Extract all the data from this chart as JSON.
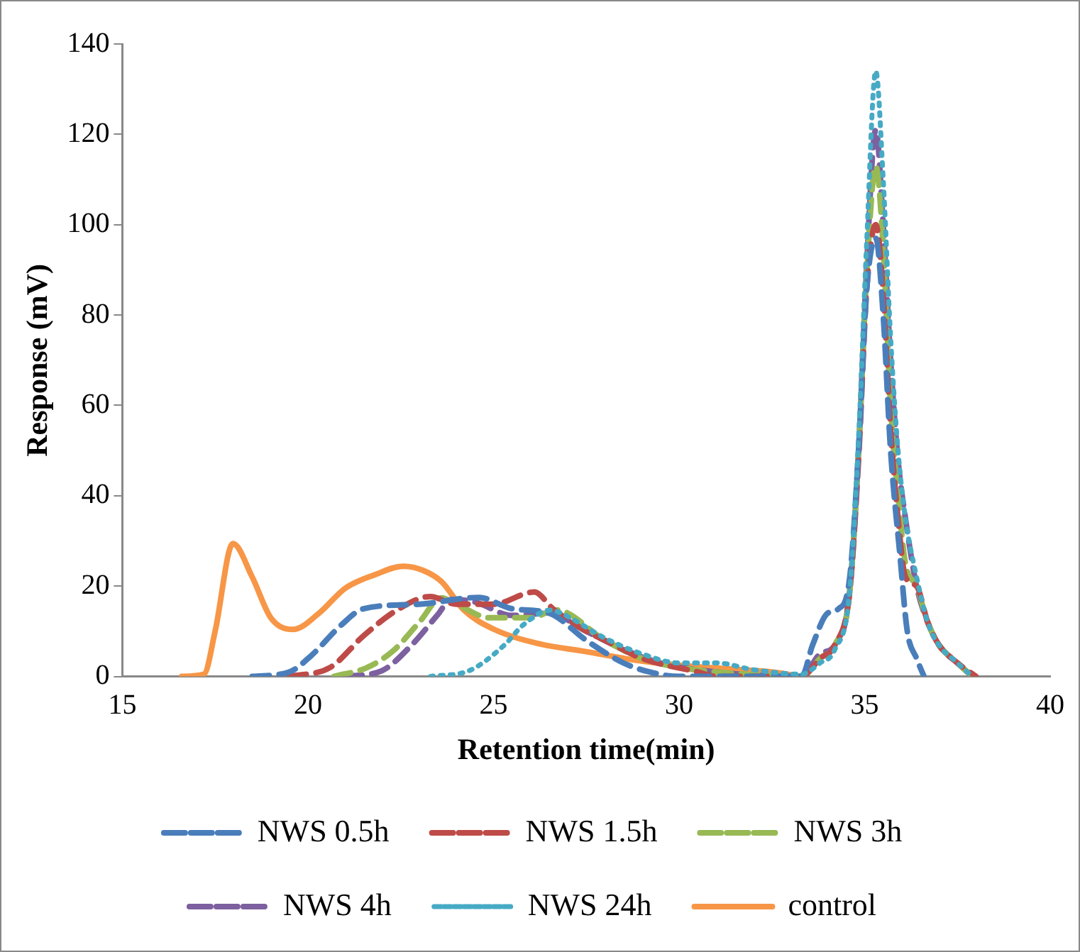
{
  "chart_data": {
    "type": "line",
    "xlabel": "Retention time(min)",
    "ylabel": "Response (mV)",
    "xlim": [
      15,
      40
    ],
    "xticks": [
      15,
      20,
      25,
      30,
      35,
      40
    ],
    "ylim": [
      0,
      140
    ],
    "yticks": [
      0,
      20,
      40,
      60,
      80,
      100,
      120,
      140
    ],
    "grid": false,
    "legend": "bottom",
    "marker": "none",
    "series": [
      {
        "name": "NWS 0.5h",
        "color": "#4a7ebb",
        "line_style": "dashed",
        "x": [
          18.5,
          19.5,
          20.1,
          20.9,
          21.5,
          23,
          24.6,
          25.5,
          26.5,
          27.5,
          28.5,
          29.2,
          30,
          31,
          32,
          33.3,
          33.6,
          34,
          34.3,
          34.6,
          34.85,
          35.05,
          35.3,
          35.5,
          35.7,
          35.95,
          36.15,
          36.4,
          36.6
        ],
        "values": [
          0,
          1,
          4.7,
          11.4,
          15,
          16,
          17.5,
          15,
          14,
          8,
          3,
          1,
          0,
          0,
          0,
          0,
          7,
          14,
          15,
          22,
          52,
          85,
          97,
          80,
          50,
          27,
          10,
          4,
          0
        ]
      },
      {
        "name": "NWS 1.5h",
        "color": "#be4b48",
        "line_style": "dashed",
        "x": [
          19.5,
          20.6,
          21.5,
          22.4,
          23.3,
          24,
          25,
          26.1,
          26.6,
          27.5,
          28,
          29,
          30.5,
          31,
          33.3,
          33.8,
          34.2,
          34.6,
          34.85,
          35.05,
          35.3,
          35.5,
          35.7,
          35.9,
          36.1,
          36.4,
          36.7,
          37,
          37.5,
          38
        ],
        "values": [
          0,
          2,
          9,
          14.7,
          17.7,
          16,
          16,
          18.7,
          15,
          10,
          8,
          4,
          1,
          0,
          0,
          4,
          7,
          19,
          50,
          85,
          100,
          85,
          55,
          35,
          22,
          20,
          12,
          7,
          3,
          0
        ]
      },
      {
        "name": "NWS 3h",
        "color": "#98b954",
        "line_style": "dashed",
        "x": [
          20.7,
          21.6,
          22.3,
          23,
          23.6,
          24,
          24.9,
          26,
          26.7,
          28,
          29,
          30,
          31,
          33.3,
          33.8,
          34.2,
          34.6,
          34.85,
          35.05,
          35.3,
          35.5,
          35.7,
          35.9,
          36.1,
          36.4,
          36.7,
          37,
          37.5,
          37.9
        ],
        "values": [
          0,
          2,
          5.7,
          12,
          17.4,
          16,
          13,
          13,
          14.7,
          8,
          4,
          2,
          1,
          0,
          4,
          7,
          19,
          52,
          88,
          113,
          95,
          60,
          40,
          25,
          20,
          12,
          7,
          3,
          0
        ]
      },
      {
        "name": "NWS 4h",
        "color": "#7d60a0",
        "line_style": "dashed",
        "x": [
          21,
          22,
          22.8,
          23.5,
          23.85,
          24.5,
          25.5,
          26.5,
          27.5,
          28.5,
          29.5,
          31,
          33.3,
          33.8,
          34.2,
          34.6,
          34.85,
          35.05,
          35.3,
          35.5,
          35.7,
          35.9,
          36.1,
          36.4,
          36.7,
          37,
          37.5,
          37.9
        ],
        "values": [
          0,
          1.3,
          7,
          13.7,
          17,
          16.5,
          13.5,
          14,
          10,
          6,
          3,
          1,
          0,
          5,
          7,
          19,
          52,
          90,
          121,
          100,
          70,
          48,
          35,
          20,
          12,
          7,
          3,
          0
        ]
      },
      {
        "name": "NWS 24h",
        "color": "#46aac5",
        "line_style": "dotted",
        "x": [
          23.3,
          24.35,
          25.3,
          25.8,
          26.55,
          26.9,
          28,
          29,
          30,
          31,
          32,
          33.3,
          33.8,
          34.2,
          34.6,
          34.85,
          35.05,
          35.3,
          35.5,
          35.7,
          35.9,
          36.1,
          36.4,
          36.7,
          37,
          37.5,
          37.9
        ],
        "values": [
          0,
          1.3,
          7,
          11.4,
          14.7,
          13.7,
          8.5,
          5,
          3,
          3,
          1.5,
          0.5,
          3,
          6,
          19,
          55,
          95,
          134,
          110,
          75,
          50,
          35,
          22,
          12,
          7,
          3,
          0
        ]
      },
      {
        "name": "control",
        "color": "#f79646",
        "line_style": "solid",
        "x": [
          16.6,
          17.2,
          17.5,
          17.98,
          18.5,
          19,
          19.6,
          20.3,
          21,
          21.8,
          22.57,
          23.1,
          23.6,
          24.2,
          25,
          26.2,
          27.5,
          28.75,
          30,
          31.3,
          32.5,
          33.3
        ],
        "values": [
          0,
          0.5,
          10,
          29.4,
          22,
          13,
          10.4,
          14,
          19.5,
          22.5,
          24.4,
          23.5,
          21,
          14.7,
          10.5,
          7.3,
          5.5,
          3.7,
          2.5,
          1.7,
          1,
          0
        ]
      }
    ]
  }
}
